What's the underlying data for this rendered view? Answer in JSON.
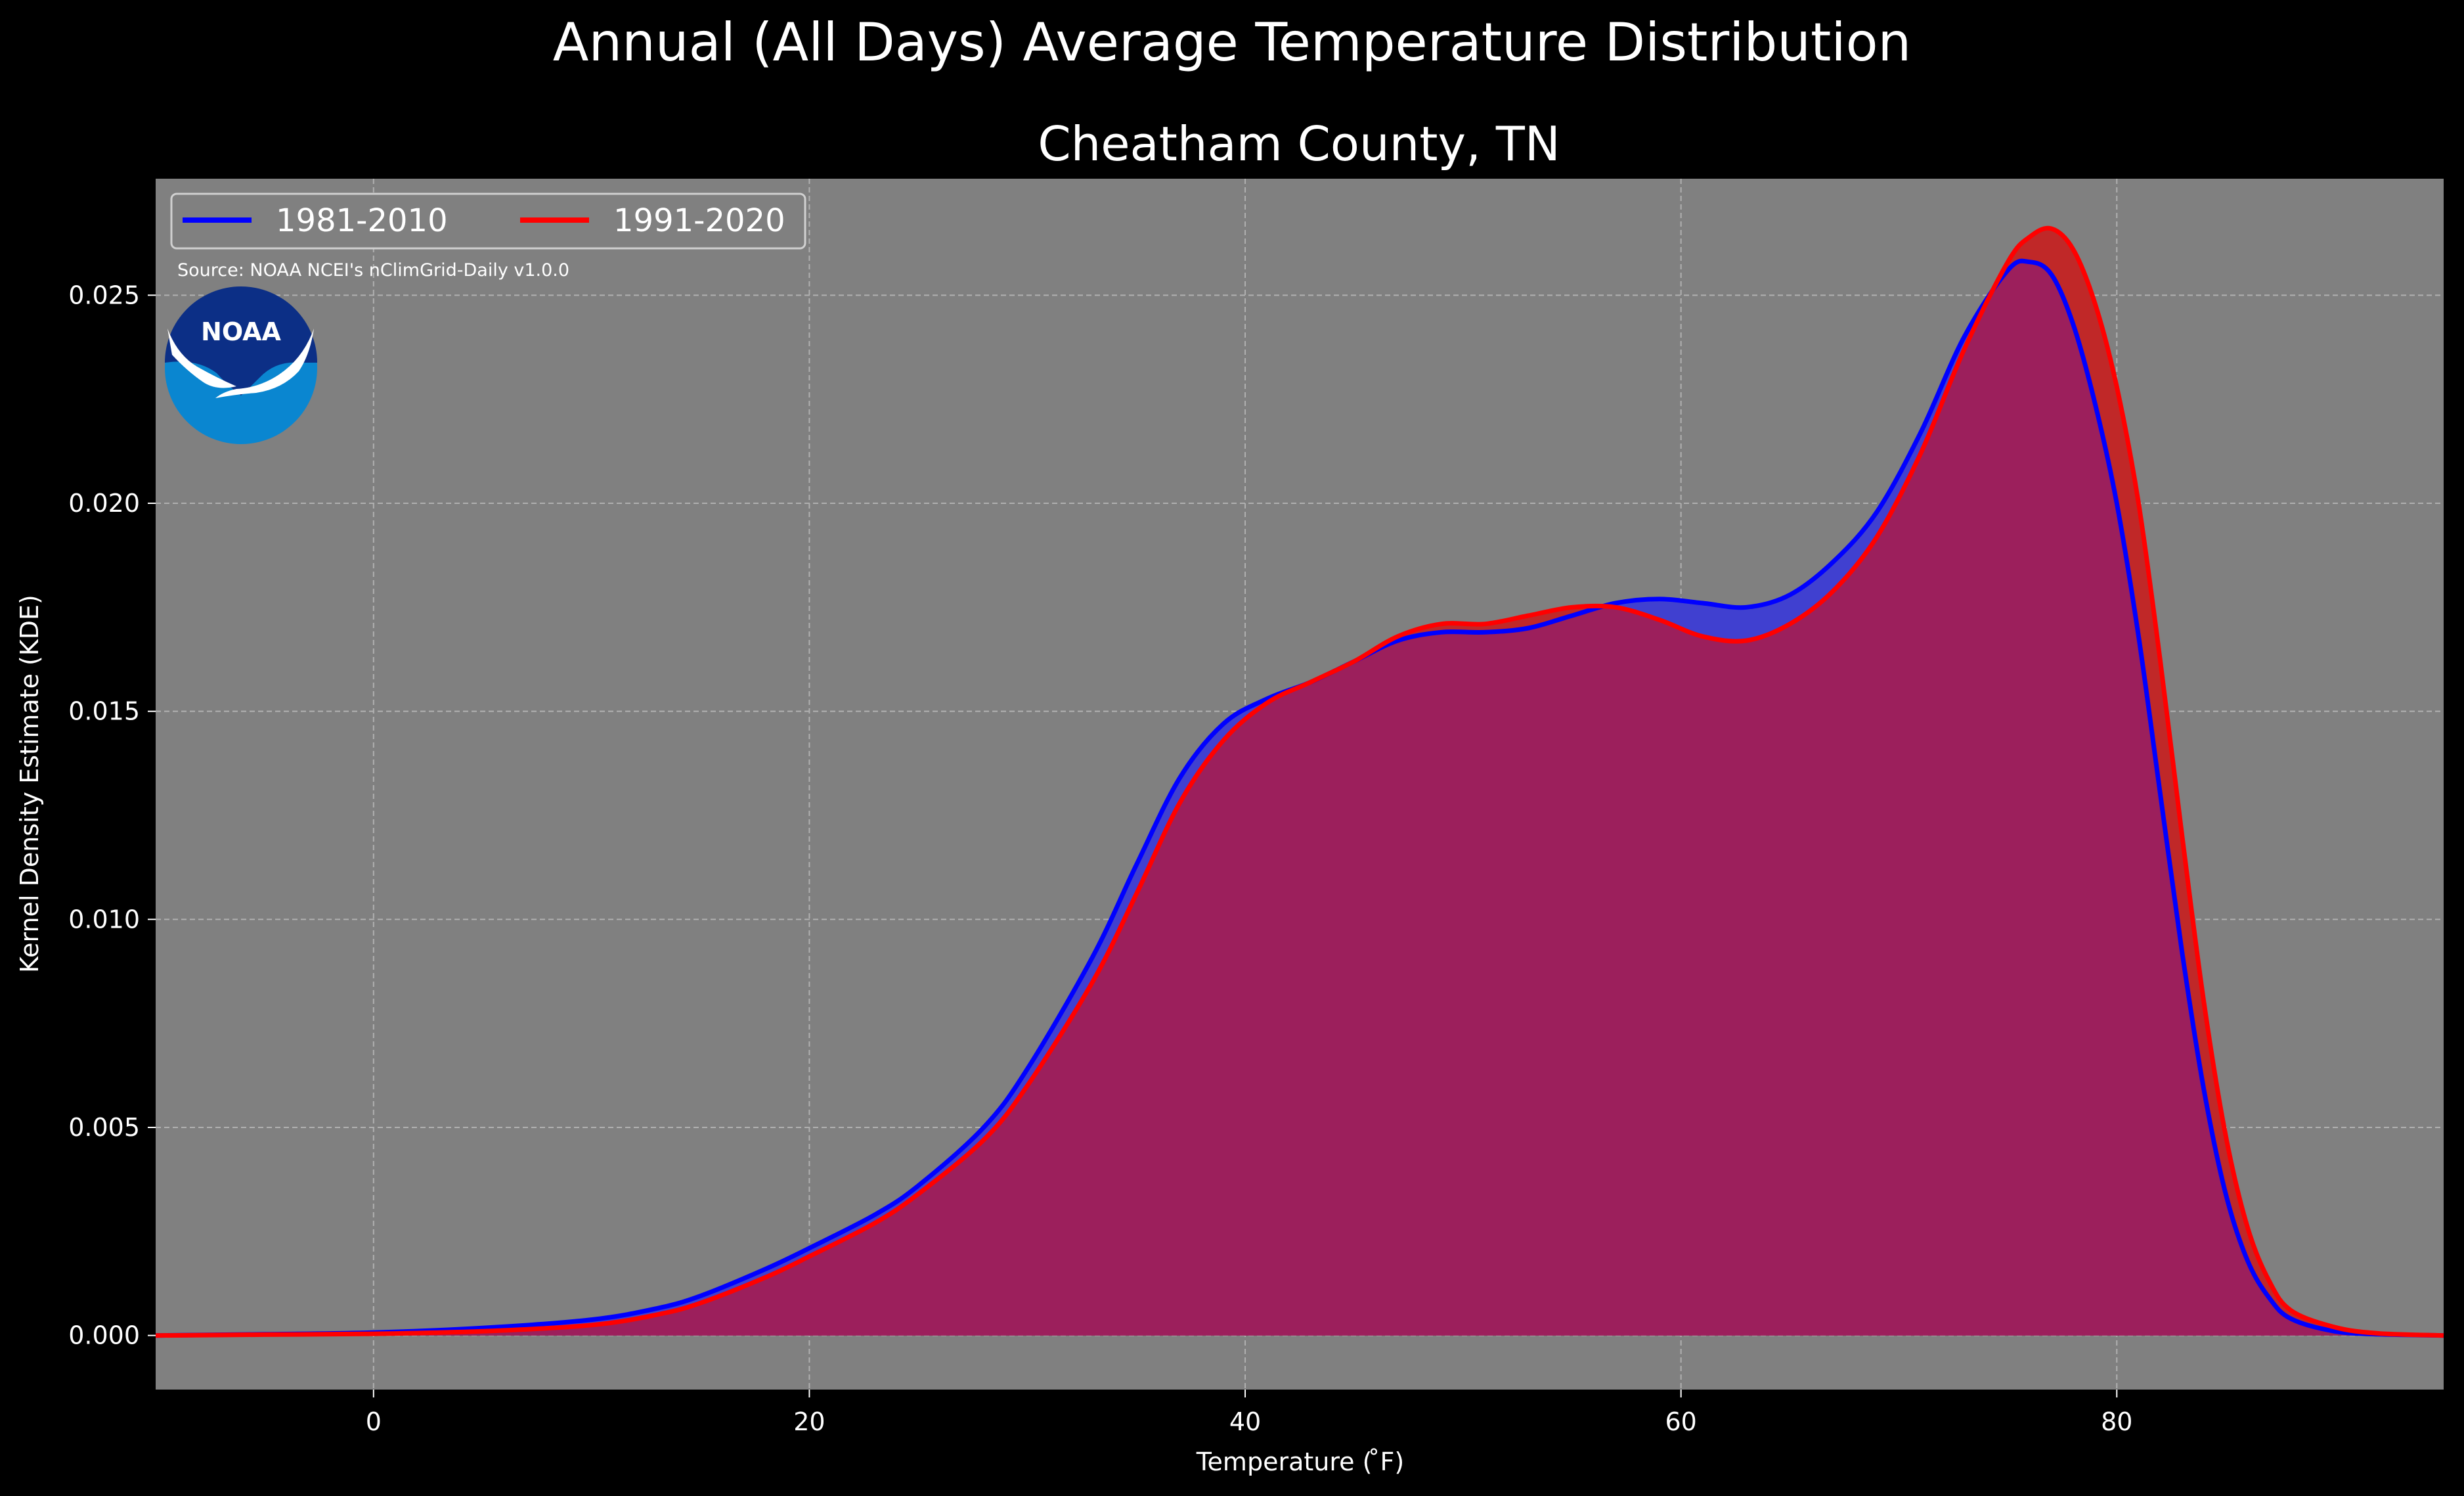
{
  "chart_data": {
    "type": "area",
    "title": "Annual (All Days) Average Temperature Distribution",
    "subtitle": "Cheatham County, TN",
    "xlabel": "Temperature ($^\\circ$F)",
    "xlabel_display": "Temperature ( ̊F)",
    "ylabel": "Kernel Density Estimate (KDE)",
    "source": "Source: NOAA NCEI's nClimGrid-Daily v1.0.0",
    "logo_text": "NOAA",
    "xlim": [
      -10,
      95
    ],
    "ylim": [
      -0.0013,
      0.0278
    ],
    "x_ticks": [
      0,
      20,
      40,
      60,
      80
    ],
    "y_ticks": [
      0.0,
      0.005,
      0.01,
      0.015,
      0.02,
      0.025
    ],
    "y_tick_labels": [
      "0.000",
      "0.005",
      "0.010",
      "0.015",
      "0.020",
      "0.025"
    ],
    "grid": true,
    "legend_position": "top-left",
    "colors": {
      "background": "#000000",
      "plot_bg": "#808080",
      "grid": "#b0b0b0",
      "overlap": "#9c1f5c"
    },
    "series": [
      {
        "name": "1981-2010",
        "color": "#0000ff",
        "fill": "#4040d0",
        "x": [
          -10,
          -5,
          0,
          5,
          10,
          13,
          15,
          18,
          20,
          23,
          25,
          28,
          30,
          33,
          35,
          37,
          39,
          41,
          43,
          45,
          47,
          49,
          51,
          53,
          55,
          57,
          59,
          61,
          63,
          65,
          67,
          69,
          71,
          73,
          75,
          76,
          77,
          78,
          79,
          80,
          81,
          82,
          83,
          84,
          85,
          86,
          87,
          88,
          90,
          92,
          95
        ],
        "y": [
          0.0,
          3e-05,
          7e-05,
          0.00018,
          0.00038,
          0.00065,
          0.00095,
          0.0016,
          0.0021,
          0.0029,
          0.0036,
          0.005,
          0.0064,
          0.0091,
          0.0113,
          0.0134,
          0.0147,
          0.0153,
          0.0157,
          0.0162,
          0.0167,
          0.0169,
          0.0169,
          0.017,
          0.0173,
          0.0176,
          0.0177,
          0.0176,
          0.0175,
          0.0178,
          0.0186,
          0.0198,
          0.0217,
          0.024,
          0.0256,
          0.0258,
          0.0255,
          0.0243,
          0.0224,
          0.02,
          0.0168,
          0.013,
          0.0092,
          0.0059,
          0.0034,
          0.0018,
          0.0009,
          0.0004,
          0.0001,
          3e-05,
          0.0
        ]
      },
      {
        "name": "1991-2020",
        "color": "#ff0000",
        "fill": "#c02828",
        "x": [
          -10,
          -5,
          0,
          5,
          10,
          13,
          15,
          18,
          20,
          23,
          25,
          28,
          30,
          33,
          35,
          37,
          39,
          41,
          43,
          45,
          47,
          49,
          51,
          53,
          55,
          57,
          59,
          61,
          63,
          65,
          67,
          69,
          71,
          73,
          75,
          76,
          77,
          78,
          79,
          80,
          81,
          82,
          83,
          84,
          85,
          86,
          87,
          88,
          90,
          92,
          95
        ],
        "y": [
          0.0,
          2e-05,
          4e-05,
          0.0001,
          0.00025,
          0.0005,
          0.00078,
          0.0014,
          0.0019,
          0.0027,
          0.0034,
          0.0047,
          0.006,
          0.0085,
          0.0106,
          0.0128,
          0.0143,
          0.0152,
          0.0157,
          0.0162,
          0.0168,
          0.0171,
          0.0171,
          0.0173,
          0.0175,
          0.0175,
          0.0172,
          0.0168,
          0.0167,
          0.0171,
          0.0179,
          0.0192,
          0.0212,
          0.0237,
          0.0258,
          0.0264,
          0.0266,
          0.0261,
          0.0248,
          0.0228,
          0.02,
          0.0162,
          0.012,
          0.008,
          0.0048,
          0.0026,
          0.0013,
          0.0006,
          0.0002,
          5e-05,
          0.0
        ]
      }
    ]
  }
}
